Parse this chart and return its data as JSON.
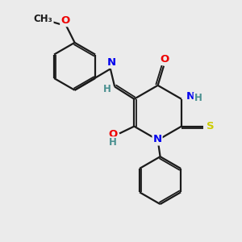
{
  "background_color": "#ebebeb",
  "bond_color": "#1a1a1a",
  "atom_colors": {
    "N": "#0000ee",
    "O": "#ee0000",
    "S": "#cccc00",
    "H": "#4a9090",
    "C": "#1a1a1a"
  }
}
